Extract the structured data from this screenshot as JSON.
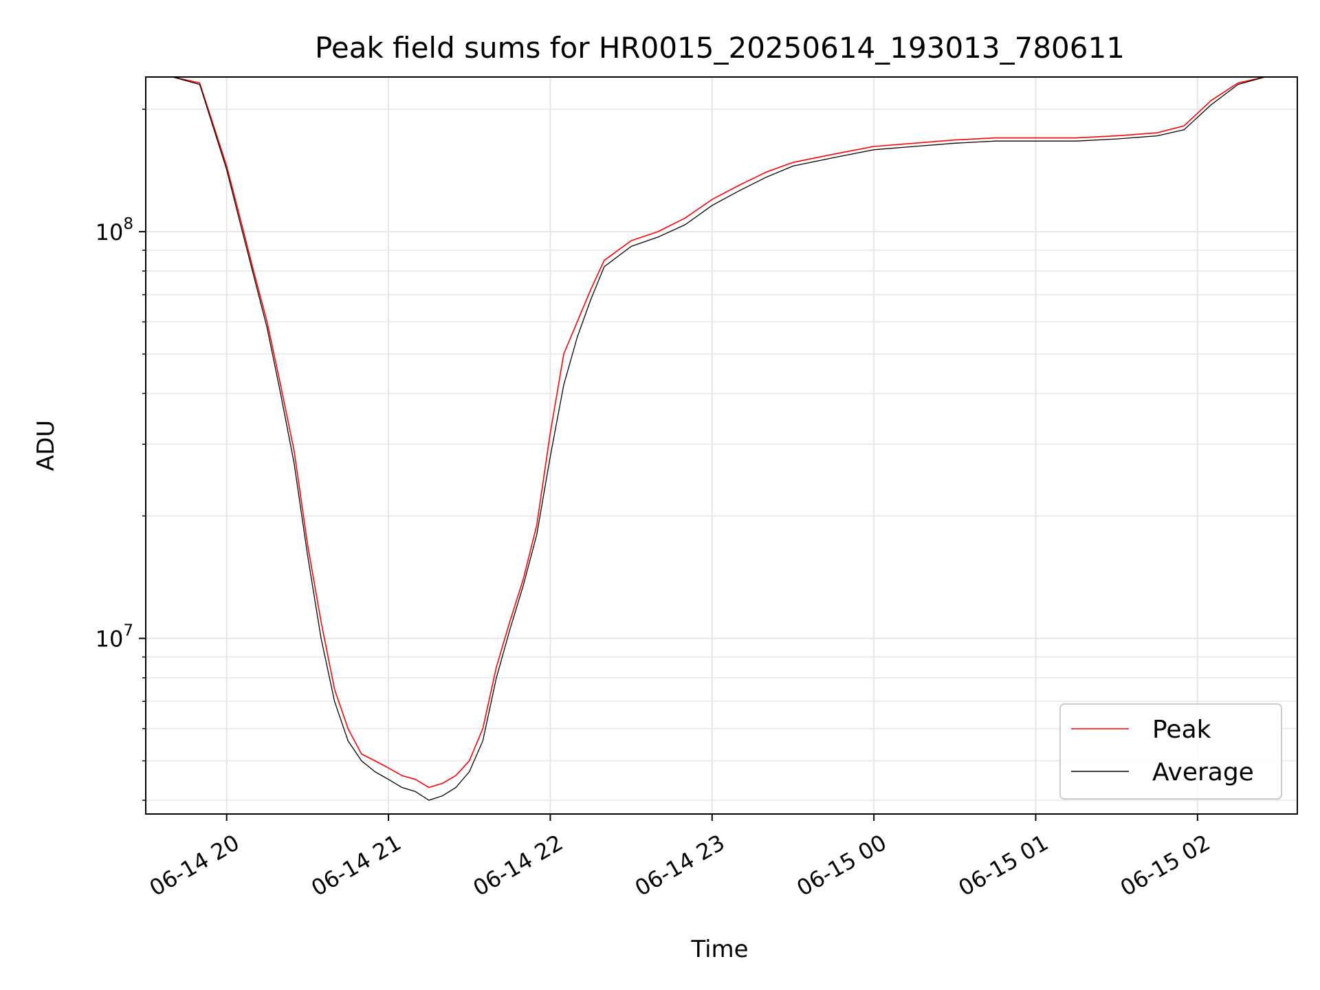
{
  "chart_data": {
    "type": "line",
    "title": "Peak field sums for HR0015_20250614_193013_780611",
    "xlabel": "Time",
    "ylabel": "ADU",
    "yscale": "log",
    "ylim": [
      3700000,
      240000000
    ],
    "xlim": [
      "2025-06-14 19:30",
      "2025-06-15 02:37"
    ],
    "grid": true,
    "legend_position": "lower-right",
    "x_ticks": [
      {
        "t": "2025-06-14 20:00",
        "label": "06-14 20"
      },
      {
        "t": "2025-06-14 21:00",
        "label": "06-14 21"
      },
      {
        "t": "2025-06-14 22:00",
        "label": "06-14 22"
      },
      {
        "t": "2025-06-14 23:00",
        "label": "06-14 23"
      },
      {
        "t": "2025-06-15 00:00",
        "label": "06-15 00"
      },
      {
        "t": "2025-06-15 01:00",
        "label": "06-15 01"
      },
      {
        "t": "2025-06-15 02:00",
        "label": "06-15 02"
      }
    ],
    "y_ticks": [
      {
        "value": 10000000,
        "base": "10",
        "exp": "7"
      },
      {
        "value": 100000000,
        "base": "10",
        "exp": "8"
      }
    ],
    "x": [
      "2025-06-14 19:30",
      "2025-06-14 19:40",
      "2025-06-14 19:50",
      "2025-06-14 20:00",
      "2025-06-14 20:05",
      "2025-06-14 20:10",
      "2025-06-14 20:15",
      "2025-06-14 20:20",
      "2025-06-14 20:25",
      "2025-06-14 20:30",
      "2025-06-14 20:35",
      "2025-06-14 20:40",
      "2025-06-14 20:45",
      "2025-06-14 20:50",
      "2025-06-14 20:55",
      "2025-06-14 21:00",
      "2025-06-14 21:05",
      "2025-06-14 21:10",
      "2025-06-14 21:15",
      "2025-06-14 21:20",
      "2025-06-14 21:25",
      "2025-06-14 21:30",
      "2025-06-14 21:35",
      "2025-06-14 21:40",
      "2025-06-14 21:45",
      "2025-06-14 21:50",
      "2025-06-14 21:55",
      "2025-06-14 22:00",
      "2025-06-14 22:05",
      "2025-06-14 22:10",
      "2025-06-14 22:15",
      "2025-06-14 22:20",
      "2025-06-14 22:30",
      "2025-06-14 22:40",
      "2025-06-14 22:50",
      "2025-06-14 23:00",
      "2025-06-14 23:10",
      "2025-06-14 23:20",
      "2025-06-14 23:30",
      "2025-06-14 23:45",
      "2025-06-15 00:00",
      "2025-06-15 00:15",
      "2025-06-15 00:30",
      "2025-06-15 00:45",
      "2025-06-15 01:00",
      "2025-06-15 01:15",
      "2025-06-15 01:30",
      "2025-06-15 01:45",
      "2025-06-15 01:55",
      "2025-06-15 02:05",
      "2025-06-15 02:15",
      "2025-06-15 02:25",
      "2025-06-15 02:37"
    ],
    "series": [
      {
        "name": "Peak",
        "color": "#ff0000",
        "values": [
          240000000,
          240000000,
          232000000,
          145000000,
          108000000,
          80000000,
          60000000,
          42000000,
          29000000,
          17000000,
          11000000,
          7500000,
          6000000,
          5200000,
          5000000,
          4800000,
          4600000,
          4500000,
          4300000,
          4400000,
          4600000,
          5000000,
          6000000,
          8500000,
          11000000,
          14000000,
          19000000,
          32000000,
          50000000,
          60000000,
          72000000,
          85000000,
          95000000,
          100000000,
          108000000,
          120000000,
          130000000,
          140000000,
          148000000,
          155000000,
          162000000,
          165000000,
          168000000,
          170000000,
          170000000,
          170000000,
          172000000,
          175000000,
          182000000,
          210000000,
          232000000,
          240000000,
          240000000
        ]
      },
      {
        "name": "Average",
        "color": "#000000",
        "values": [
          240000000,
          240000000,
          230000000,
          142000000,
          105000000,
          78000000,
          58000000,
          40000000,
          27000000,
          16000000,
          10000000,
          7000000,
          5600000,
          5000000,
          4700000,
          4500000,
          4300000,
          4200000,
          4000000,
          4100000,
          4300000,
          4700000,
          5600000,
          8000000,
          10500000,
          13500000,
          18000000,
          28000000,
          42000000,
          55000000,
          68000000,
          82000000,
          92000000,
          97000000,
          104000000,
          116000000,
          126000000,
          136000000,
          145000000,
          152000000,
          159000000,
          162000000,
          165000000,
          167000000,
          167000000,
          167000000,
          169000000,
          172000000,
          178000000,
          205000000,
          230000000,
          240000000,
          240000000
        ]
      }
    ]
  }
}
